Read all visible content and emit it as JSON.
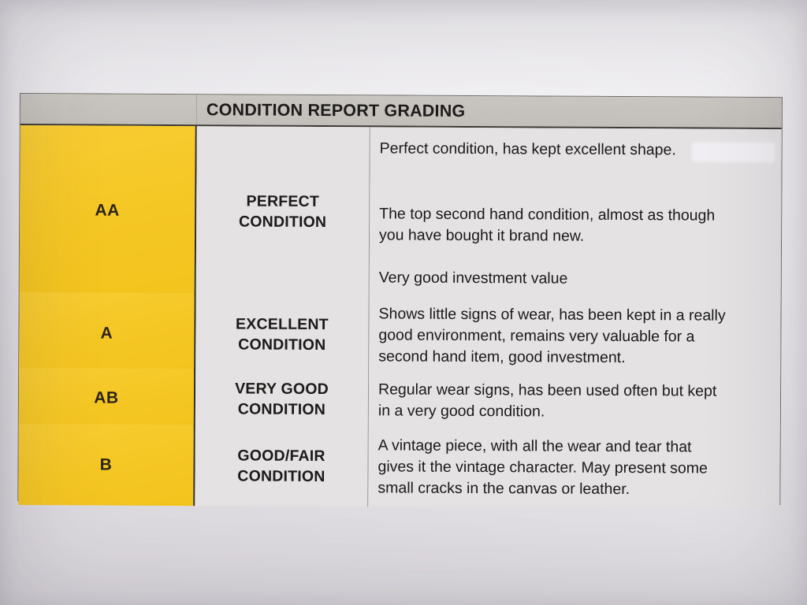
{
  "table": {
    "title": "CONDITION REPORT GRADING",
    "rows": [
      {
        "grade": "AA",
        "name": "PERFECT\nCONDITION",
        "paragraphs": [
          "Perfect condition, has kept excellent shape.",
          "The top second hand condition, almost as though\nyou have bought it brand new.",
          "Very good investment value"
        ]
      },
      {
        "grade": "A",
        "name": "EXCELLENT\nCONDITION",
        "paragraphs": [
          "Shows little signs of wear, has been kept in a really\ngood environment, remains very valuable for a\nsecond hand item, good investment."
        ]
      },
      {
        "grade": "AB",
        "name": "VERY GOOD\nCONDITION",
        "paragraphs": [
          "Regular wear signs, has been used often but kept\nin a very good condition."
        ]
      },
      {
        "grade": "B",
        "name": "GOOD/FAIR\nCONDITION",
        "paragraphs": [
          "A vintage piece, with all the wear and tear that\ngives it the vintage character. May present some\nsmall cracks in the canvas or leather."
        ]
      }
    ]
  },
  "colors": {
    "paper": "#e7e5e9",
    "header_bg": "#c6c2bd",
    "grade_bg": "#f6c827",
    "cell_bg": "#e4e2e3",
    "text": "#1b1a1c",
    "border_dark": "#2b2a26"
  }
}
